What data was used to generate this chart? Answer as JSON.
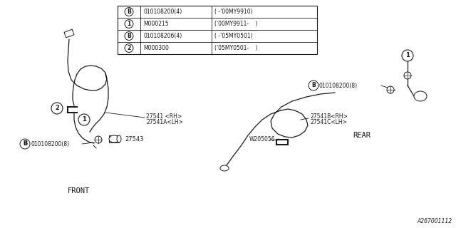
{
  "bg_color": "#ffffff",
  "line_color": "#1a1a1a",
  "table": {
    "rows": [
      {
        "circle": "B",
        "part": "010108200(4)",
        "note": "( -'00MY9910)"
      },
      {
        "circle": "1",
        "part": "M000215",
        "note": "('00MY9911-    )"
      },
      {
        "circle": "B",
        "part": "010108206(4)",
        "note": "( -'05MY0501)"
      },
      {
        "circle": "2",
        "part": "M000300",
        "note": "('05MY0501-    )"
      }
    ]
  },
  "diagram_id": "A267001112"
}
